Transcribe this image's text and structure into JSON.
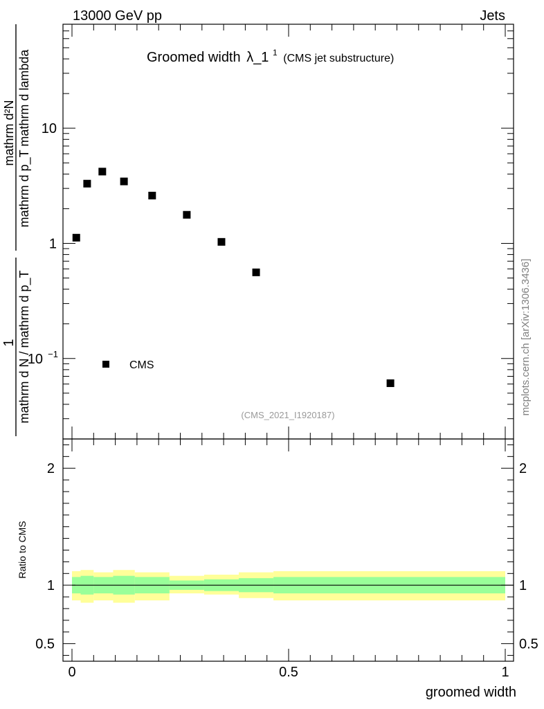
{
  "header": {
    "left": "13000 GeV pp",
    "right": "Jets"
  },
  "chart_data": [
    {
      "type": "scatter",
      "title_main": "Groomed width",
      "title_symbol": "λ_1",
      "title_sup": "1",
      "title_sub": "(CMS jet substructure)",
      "ylabel_num": "mathrm d²N",
      "ylabel_den": "mathrm d p_T mathrm d lambda",
      "ylabel_prefix_num": "1",
      "ylabel_prefix_den": "mathrm d N / mathrm d p_T",
      "y_scale": "log",
      "xlim": [
        0,
        1
      ],
      "ylim": [
        0.02,
        80
      ],
      "y_ticks": [
        {
          "value": 0.1,
          "label": "10",
          "sup": "−1"
        },
        {
          "value": 1,
          "label": "1",
          "sup": ""
        },
        {
          "value": 10,
          "label": "10",
          "sup": ""
        }
      ],
      "legend": {
        "label": "CMS",
        "placement": "bottom-left"
      },
      "analysis_tag": "(CMS_2021_I1920187)",
      "side_label": "mcplots.cern.ch [arXiv:1306.3436]",
      "series": [
        {
          "name": "CMS",
          "points": [
            {
              "x": 0.01,
              "y": 1.12
            },
            {
              "x": 0.035,
              "y": 3.3
            },
            {
              "x": 0.07,
              "y": 4.2
            },
            {
              "x": 0.12,
              "y": 3.45
            },
            {
              "x": 0.185,
              "y": 2.6
            },
            {
              "x": 0.265,
              "y": 1.77
            },
            {
              "x": 0.345,
              "y": 1.03
            },
            {
              "x": 0.425,
              "y": 0.56
            },
            {
              "x": 0.735,
              "y": 0.061
            }
          ]
        }
      ]
    },
    {
      "type": "area",
      "ylabel": "Ratio to CMS",
      "xlabel": "groomed width",
      "xlim": [
        0,
        1
      ],
      "ylim": [
        0.35,
        2.25
      ],
      "x_ticks": [
        {
          "value": 0,
          "label": "0"
        },
        {
          "value": 0.5,
          "label": "0.5"
        },
        {
          "value": 1,
          "label": "1"
        }
      ],
      "y_ticks": [
        {
          "value": 0.5,
          "label": "0.5"
        },
        {
          "value": 1,
          "label": "1"
        },
        {
          "value": 2,
          "label": "2"
        }
      ],
      "reference_line": 1,
      "bands": [
        {
          "x0": 0.0,
          "x1": 0.02,
          "inner": [
            0.93,
            1.07
          ],
          "outer": [
            0.87,
            1.12
          ]
        },
        {
          "x0": 0.02,
          "x1": 0.05,
          "inner": [
            0.92,
            1.08
          ],
          "outer": [
            0.85,
            1.13
          ]
        },
        {
          "x0": 0.05,
          "x1": 0.095,
          "inner": [
            0.93,
            1.07
          ],
          "outer": [
            0.87,
            1.11
          ]
        },
        {
          "x0": 0.095,
          "x1": 0.145,
          "inner": [
            0.92,
            1.08
          ],
          "outer": [
            0.85,
            1.13
          ]
        },
        {
          "x0": 0.145,
          "x1": 0.225,
          "inner": [
            0.93,
            1.07
          ],
          "outer": [
            0.87,
            1.11
          ]
        },
        {
          "x0": 0.225,
          "x1": 0.305,
          "inner": [
            0.96,
            1.04
          ],
          "outer": [
            0.93,
            1.08
          ]
        },
        {
          "x0": 0.305,
          "x1": 0.385,
          "inner": [
            0.95,
            1.05
          ],
          "outer": [
            0.92,
            1.09
          ]
        },
        {
          "x0": 0.385,
          "x1": 0.465,
          "inner": [
            0.94,
            1.06
          ],
          "outer": [
            0.89,
            1.11
          ]
        },
        {
          "x0": 0.465,
          "x1": 1.0,
          "inner": [
            0.93,
            1.07
          ],
          "outer": [
            0.87,
            1.12
          ]
        }
      ],
      "colors": {
        "inner": "#99ff99",
        "outer": "#ffff99",
        "line": "#000000"
      }
    }
  ]
}
